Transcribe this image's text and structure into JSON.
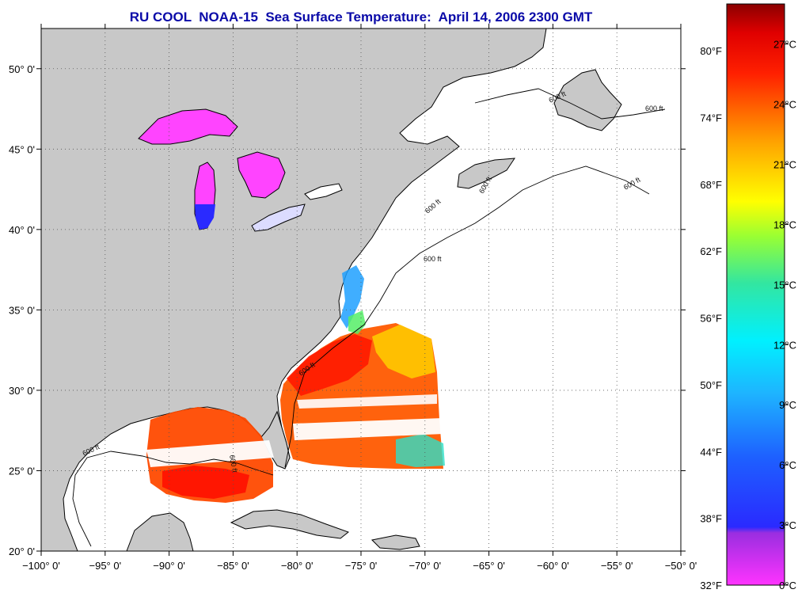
{
  "title": "RU COOL  NOAA-15  Sea Surface Temperature:  April 14, 2006 2300 GMT",
  "map": {
    "lon_range": [
      -100,
      -50
    ],
    "lat_range": [
      20,
      52.5
    ],
    "lon_ticks": [
      {
        "value": -100,
        "label": "−100° 0'"
      },
      {
        "value": -95,
        "label": "−95° 0'"
      },
      {
        "value": -90,
        "label": "−90° 0'"
      },
      {
        "value": -85,
        "label": "−85° 0'"
      },
      {
        "value": -80,
        "label": "−80° 0'"
      },
      {
        "value": -75,
        "label": "−75° 0'"
      },
      {
        "value": -70,
        "label": "−70° 0'"
      },
      {
        "value": -65,
        "label": "−65° 0'"
      },
      {
        "value": -60,
        "label": "−60° 0'"
      },
      {
        "value": -55,
        "label": "−55° 0'"
      },
      {
        "value": -50,
        "label": "−50° 0'"
      }
    ],
    "lat_ticks": [
      {
        "value": 20,
        "label": "20° 0'"
      },
      {
        "value": 25,
        "label": "25° 0'"
      },
      {
        "value": 30,
        "label": "30° 0'"
      },
      {
        "value": 35,
        "label": "35° 0'"
      },
      {
        "value": 40,
        "label": "40° 0'"
      },
      {
        "value": 45,
        "label": "45° 0'"
      },
      {
        "value": 50,
        "label": "50° 0'"
      }
    ],
    "contour_labels": [
      "600 ft",
      "600 ft",
      "600 ft",
      "600 ft",
      "600 ft",
      "600 ft",
      "600 ft",
      "600 ft",
      "600 ft"
    ],
    "grid": true,
    "land_color": "#c8c8c8",
    "water_color": "#ffffff"
  },
  "colorbar": {
    "placement": "right",
    "celsius_range": [
      0,
      29
    ],
    "fahrenheit_labels": [
      "80°F",
      "74°F",
      "68°F",
      "62°F",
      "56°F",
      "50°F",
      "44°F",
      "38°F",
      "32°F"
    ],
    "fahrenheit_values": [
      80,
      74,
      68,
      62,
      56,
      50,
      44,
      38,
      32
    ],
    "celsius_labels": [
      "27°C",
      "24°C",
      "21°C",
      "18°C",
      "15°C",
      "12°C",
      "9°C",
      "6°C",
      "3°C",
      "0°C"
    ],
    "celsius_values": [
      27,
      24,
      21,
      18,
      15,
      12,
      9,
      6,
      3,
      0
    ],
    "colors": [
      "#ff33ff",
      "#7a2ad8",
      "#2a2aff",
      "#1e90ff",
      "#00f0ff",
      "#33e6a0",
      "#99ff33",
      "#ffff00",
      "#ffa500",
      "#ff4000",
      "#ff0000",
      "#8b0000"
    ]
  }
}
